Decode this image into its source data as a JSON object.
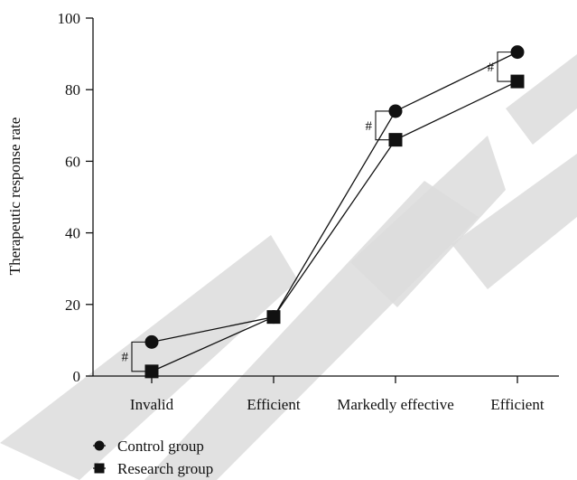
{
  "chart_data": {
    "type": "line",
    "title": "",
    "xlabel": "",
    "ylabel": "Therapeutic response rate",
    "categories": [
      "Invalid",
      "Efficient",
      "Markedly effective",
      "Efficient"
    ],
    "ylim": [
      0,
      100
    ],
    "yticks": [
      0,
      20,
      40,
      60,
      80,
      100
    ],
    "series": [
      {
        "name": "Control group",
        "marker": "circle",
        "values": [
          9.5,
          16.5,
          74,
          90.5
        ]
      },
      {
        "name": "Research group",
        "marker": "square",
        "values": [
          1.3,
          16.5,
          66,
          82.3
        ]
      }
    ],
    "significance": [
      {
        "category_index": 0,
        "label": "#"
      },
      {
        "category_index": 2,
        "label": "#"
      },
      {
        "category_index": 3,
        "label": "#"
      }
    ],
    "legend_position": "bottom-left",
    "grid": false,
    "watermark": "RETRACTED",
    "watermark_color": "#dcdcdc",
    "line_color": "#111111"
  }
}
